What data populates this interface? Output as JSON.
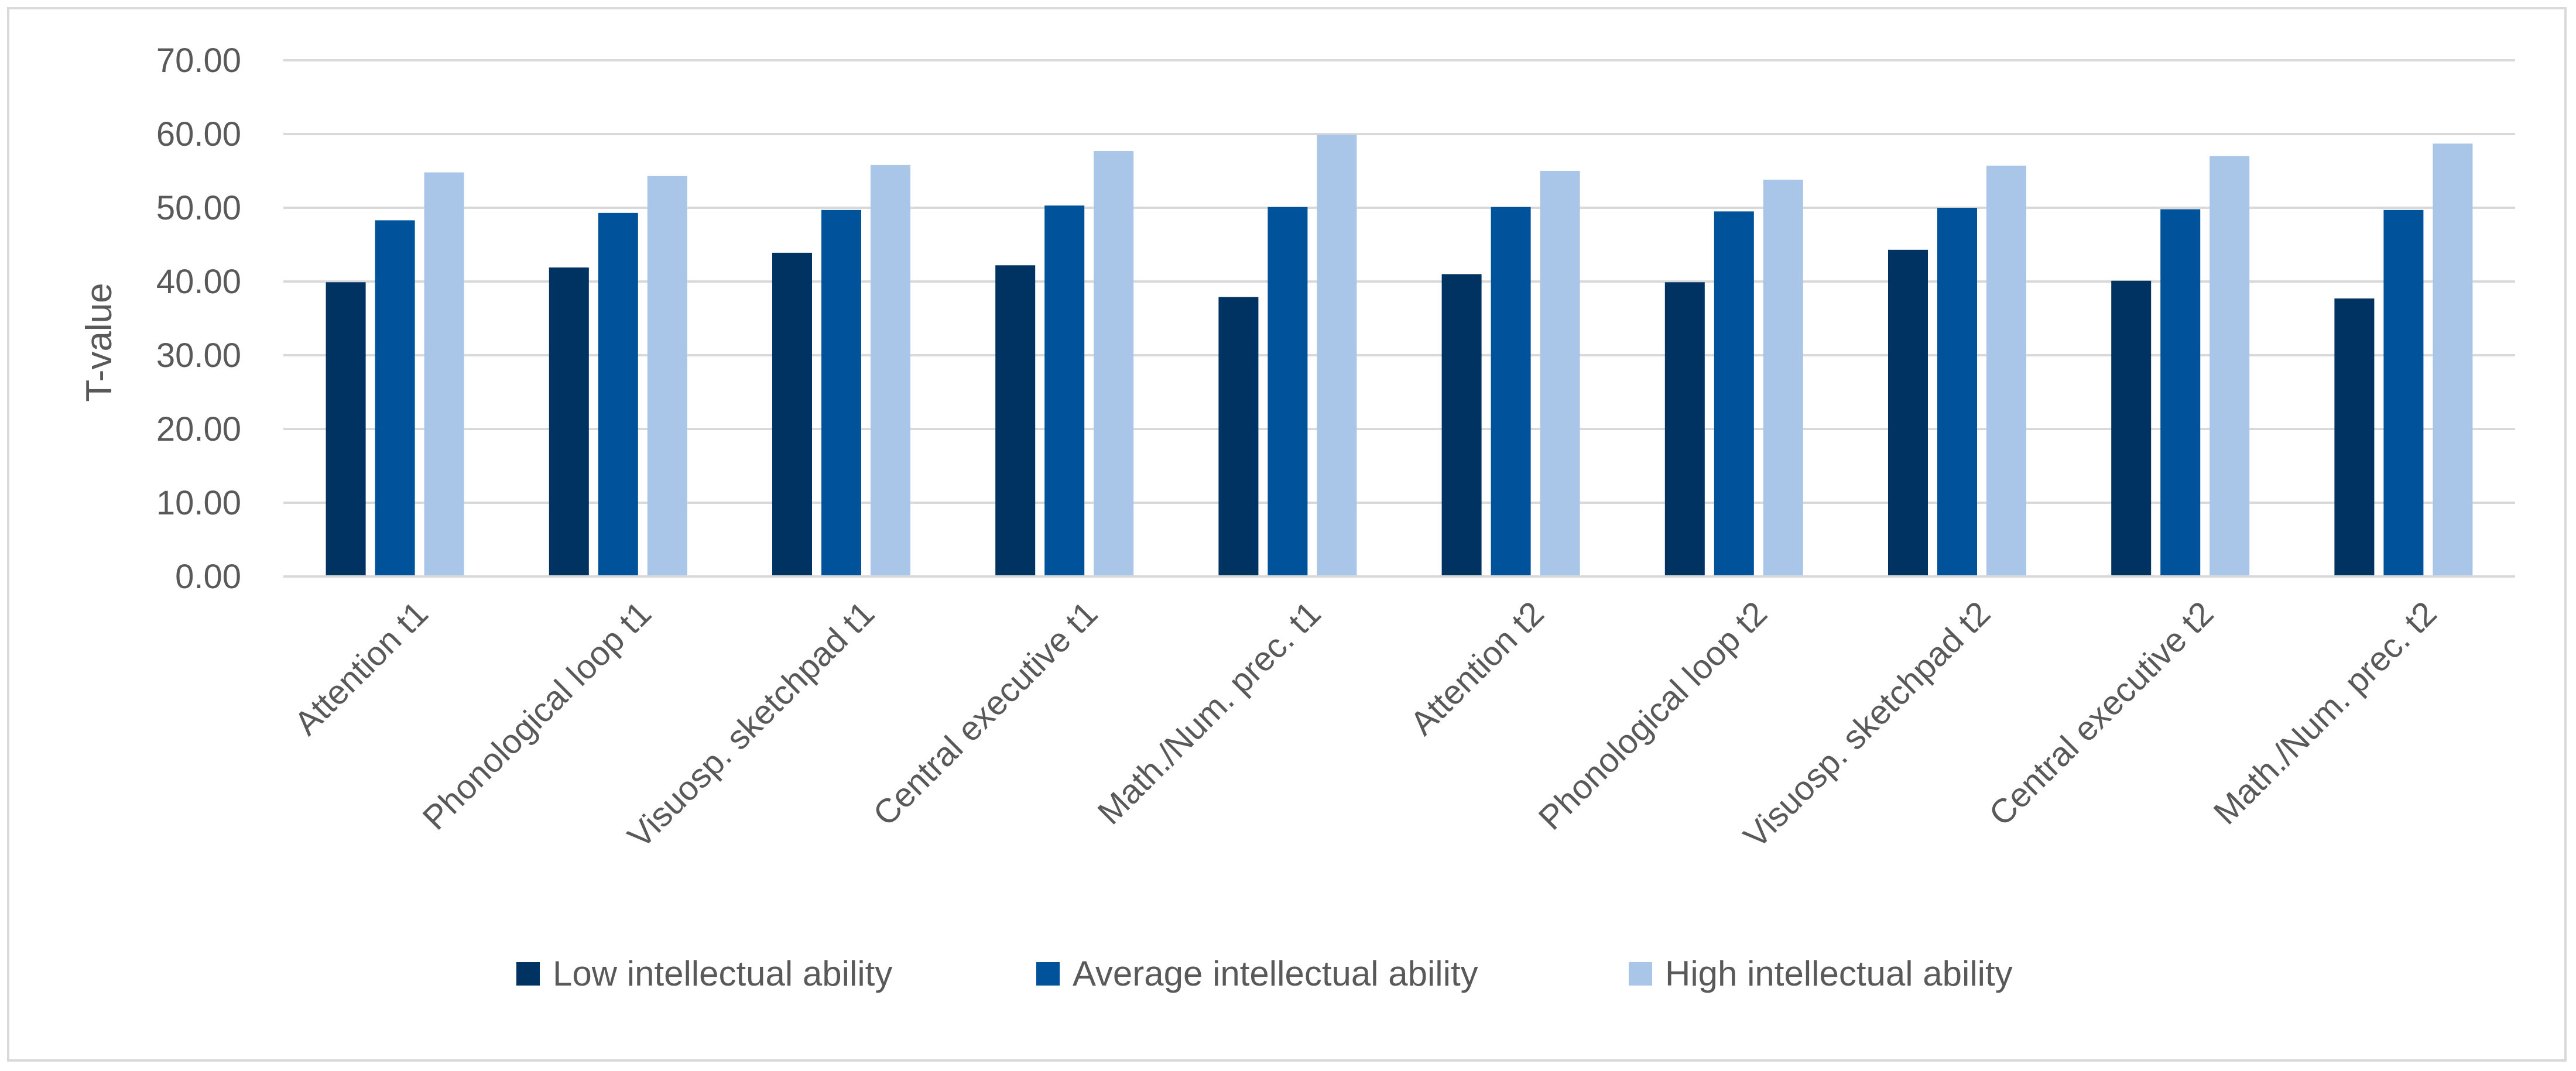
{
  "chart_data": {
    "type": "bar",
    "title": "",
    "xlabel": "",
    "ylabel": "T-value",
    "ylim": [
      0,
      70
    ],
    "yticks": [
      0,
      10,
      20,
      30,
      40,
      50,
      60,
      70
    ],
    "ytick_labels": [
      "0.00",
      "10.00",
      "20.00",
      "30.00",
      "40.00",
      "50.00",
      "60.00",
      "70.00"
    ],
    "grid": true,
    "legend_position": "bottom",
    "categories": [
      "Attention t1",
      "Phonological loop t1",
      "Visuosp. sketchpad t1",
      "Central executive t1",
      "Math./Num. prec. t1",
      "Attention t2",
      "Phonological loop t2",
      "Visuosp. sketchpad t2",
      "Central executive t2",
      "Math./Num. prec. t2"
    ],
    "series": [
      {
        "name": "Low intellectual ability",
        "color": "#003361",
        "values": [
          39.9,
          41.9,
          43.9,
          42.2,
          37.9,
          41.0,
          39.9,
          44.3,
          40.1,
          37.7
        ]
      },
      {
        "name": "Average intellectual ability",
        "color": "#00529b",
        "values": [
          48.3,
          49.3,
          49.7,
          50.3,
          50.1,
          50.1,
          49.5,
          50.0,
          49.8,
          49.7
        ]
      },
      {
        "name": "High intellectual ability",
        "color": "#a9c6e8",
        "values": [
          54.8,
          54.3,
          55.8,
          57.7,
          59.9,
          55.0,
          53.8,
          55.7,
          57.0,
          58.7
        ]
      }
    ]
  }
}
